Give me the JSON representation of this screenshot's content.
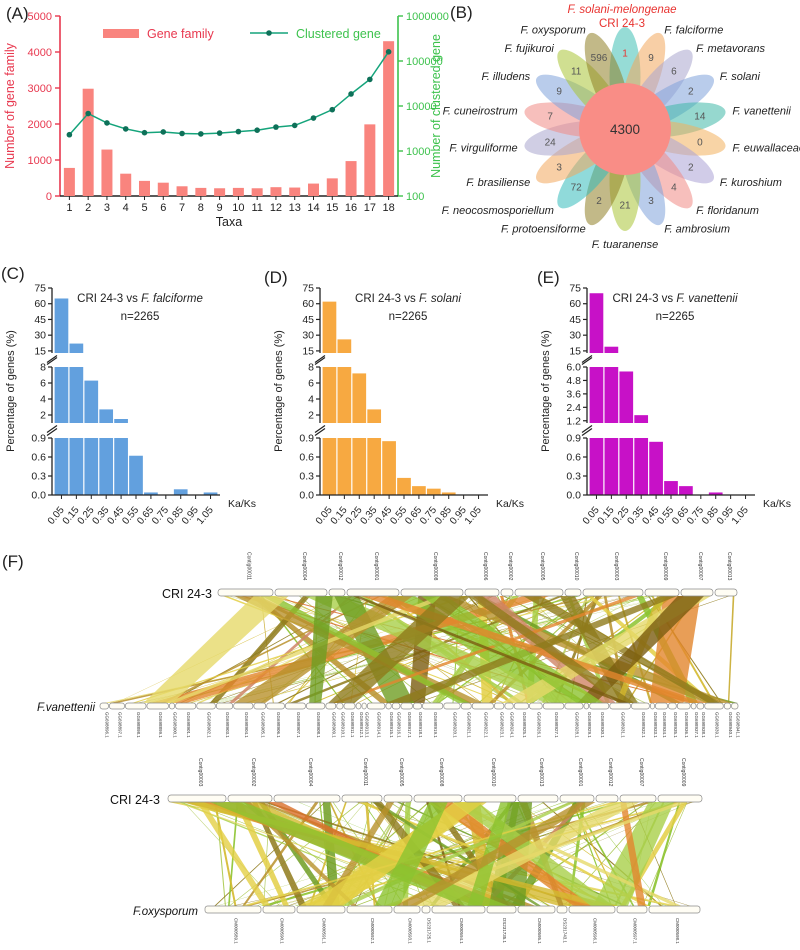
{
  "panel_letters": {
    "A": "(A)",
    "B": "(B)",
    "C": "(C)",
    "D": "(D)",
    "E": "(E)",
    "F": "(F)"
  },
  "chart_data": [
    {
      "id": "A",
      "type": "bar+line",
      "xlabel": "Taxa",
      "categories": [
        "1",
        "2",
        "3",
        "4",
        "5",
        "6",
        "7",
        "8",
        "9",
        "10",
        "11",
        "12",
        "13",
        "14",
        "15",
        "16",
        "17",
        "18"
      ],
      "series": [
        {
          "name": "Gene family",
          "type": "bar",
          "axis": "left",
          "color": "#F9847E",
          "values": [
            780,
            2980,
            1290,
            620,
            420,
            370,
            270,
            225,
            215,
            225,
            215,
            245,
            235,
            345,
            490,
            970,
            1990,
            4300
          ]
        },
        {
          "name": "Clustered gene",
          "type": "line",
          "axis": "right",
          "color": "#15A47B",
          "marker_color": "#0E7159",
          "values": [
            2300,
            6800,
            4200,
            3100,
            2550,
            2650,
            2450,
            2400,
            2500,
            2700,
            2900,
            3400,
            3700,
            5400,
            8300,
            18500,
            39000,
            160000
          ]
        }
      ],
      "left_axis": {
        "label": "Number of gene family",
        "color": "#E8384F",
        "min": 0,
        "max": 5000,
        "ticks": [
          0,
          1000,
          2000,
          3000,
          4000,
          5000
        ]
      },
      "right_axis": {
        "label": "Number of clustered gene",
        "color": "#3DC24D",
        "log": true,
        "ticks": [
          100,
          1000,
          10000,
          100000,
          1000000
        ]
      },
      "legend": [
        "Gene family",
        "Clustered gene"
      ]
    },
    {
      "id": "C",
      "type": "bar",
      "title_prefix": "CRI 24-3 vs ",
      "species": "F. falciforme",
      "subtitle": "n=2265",
      "color": "#62A0DE",
      "ylabel": "Percentage of genes (%)",
      "xlabel": "Ka/Ks",
      "categories": [
        "0.05",
        "0.15",
        "0.25",
        "0.35",
        "0.45",
        "0.55",
        "0.65",
        "0.75",
        "0.85",
        "0.95",
        "1.05"
      ],
      "values": [
        65,
        22,
        6.3,
        2.7,
        1.5,
        0.62,
        0.04,
        0,
        0.09,
        0,
        0.04
      ],
      "segments": [
        {
          "min": 0,
          "max": 0.9,
          "ticks": [
            [
              "0.0",
              0
            ],
            [
              "0.3",
              0.3
            ],
            [
              "0.6",
              0.6
            ],
            [
              "0.9",
              0.9
            ]
          ]
        },
        {
          "min": 1,
          "max": 8,
          "ticks": [
            [
              "2",
              2
            ],
            [
              "4",
              4
            ],
            [
              "6",
              6
            ],
            [
              "8",
              8
            ]
          ]
        },
        {
          "min": 13,
          "max": 75,
          "ticks": [
            [
              "15",
              15
            ],
            [
              "30",
              30
            ],
            [
              "45",
              45
            ],
            [
              "60",
              60
            ],
            [
              "75",
              75
            ]
          ]
        }
      ]
    },
    {
      "id": "D",
      "type": "bar",
      "title_prefix": "CRI 24-3 vs ",
      "species": "F. solani",
      "subtitle": "n=2265",
      "color": "#F7A941",
      "ylabel": "Percentage of genes (%)",
      "xlabel": "Ka/Ks",
      "categories": [
        "0.05",
        "0.15",
        "0.25",
        "0.35",
        "0.45",
        "0.55",
        "0.65",
        "0.75",
        "0.85",
        "0.95",
        "1.05"
      ],
      "values": [
        62,
        26,
        7.2,
        2.7,
        0.85,
        0.27,
        0.14,
        0.1,
        0.04,
        0,
        0
      ],
      "segments": [
        {
          "min": 0,
          "max": 0.9,
          "ticks": [
            [
              "0.0",
              0
            ],
            [
              "0.3",
              0.3
            ],
            [
              "0.6",
              0.6
            ],
            [
              "0.9",
              0.9
            ]
          ]
        },
        {
          "min": 1,
          "max": 8,
          "ticks": [
            [
              "2",
              2
            ],
            [
              "4",
              4
            ],
            [
              "6",
              6
            ],
            [
              "8",
              8
            ]
          ]
        },
        {
          "min": 13,
          "max": 75,
          "ticks": [
            [
              "15",
              15
            ],
            [
              "30",
              30
            ],
            [
              "45",
              45
            ],
            [
              "60",
              60
            ],
            [
              "75",
              75
            ]
          ]
        }
      ]
    },
    {
      "id": "E",
      "type": "bar",
      "title_prefix": "CRI 24-3 vs ",
      "species": "F. vanettenii",
      "subtitle": "n=2265",
      "color": "#C711C7",
      "ylabel": "Percentage of genes (%)",
      "xlabel": "Ka/Ks",
      "categories": [
        "0.05",
        "0.15",
        "0.25",
        "0.35",
        "0.45",
        "0.55",
        "0.65",
        "0.75",
        "0.85",
        "0.95",
        "1.05"
      ],
      "values": [
        70,
        19,
        5.6,
        1.7,
        0.84,
        0.22,
        0.14,
        0,
        0.04,
        0,
        0
      ],
      "segments": [
        {
          "min": 0,
          "max": 0.9,
          "ticks": [
            [
              "0.0",
              0
            ],
            [
              "0.3",
              0.3
            ],
            [
              "0.6",
              0.6
            ],
            [
              "0.9",
              0.9
            ]
          ]
        },
        {
          "min": 1,
          "max": 6,
          "ticks": [
            [
              "1.2",
              1.2
            ],
            [
              "2.4",
              2.4
            ],
            [
              "3.6",
              3.6
            ],
            [
              "4.8",
              4.8
            ],
            [
              "6.0",
              6
            ]
          ]
        },
        {
          "min": 13,
          "max": 75,
          "ticks": [
            [
              "15",
              15
            ],
            [
              "30",
              30
            ],
            [
              "45",
              45
            ],
            [
              "60",
              60
            ],
            [
              "75",
              75
            ]
          ]
        }
      ]
    }
  ],
  "flower": {
    "header_line1": "F. solani-melongenae",
    "header_line2": "CRI 24-3",
    "header_color": "#E8322F",
    "center_value": "4300",
    "center_color": "#F98D86",
    "items": [
      {
        "name": "CRI 24-3",
        "value": "1",
        "color": "#3FBFB4",
        "value_color": "#E8322F",
        "is_header": true
      },
      {
        "name": "F. falciforme",
        "value": "9",
        "color": "#F2A85C"
      },
      {
        "name": "F. metavorans",
        "value": "6",
        "color": "#A9A5CE"
      },
      {
        "name": "F. solani",
        "value": "2",
        "color": "#7FA3DB"
      },
      {
        "name": "F. vanettenii",
        "value": "14",
        "color": "#3FB8A8"
      },
      {
        "name": "F. euwallaceae",
        "value": "0",
        "color": "#F2B05C"
      },
      {
        "name": "F. kuroshium",
        "value": "2",
        "color": "#ABA3D6"
      },
      {
        "name": "F. floridanum",
        "value": "4",
        "color": "#F08B85"
      },
      {
        "name": "F. ambrosium",
        "value": "3",
        "color": "#7FA3DB"
      },
      {
        "name": "F. tuaranense",
        "value": "21",
        "color": "#A9C436"
      },
      {
        "name": "F. protoensiforme",
        "value": "2",
        "color": "#8F7F26"
      },
      {
        "name": "F. neocosmosporiellum",
        "value": "72",
        "color": "#35BCBC"
      },
      {
        "name": "F. brasiliense",
        "value": "3",
        "color": "#F2A85C"
      },
      {
        "name": "F. virguliforme",
        "value": "24",
        "color": "#A9A5CE"
      },
      {
        "name": "F. cuneirostrum",
        "value": "7",
        "color": "#F08B85"
      },
      {
        "name": "F. illudens",
        "value": "9",
        "color": "#7FA3DB"
      },
      {
        "name": "F. fujikuroi",
        "value": "11",
        "color": "#A9C436"
      },
      {
        "name": "F. oxysporum",
        "value": "596",
        "color": "#8F7F26"
      }
    ]
  },
  "synteny": {
    "ribbon_palette": [
      "#8f7a1b",
      "#8f7a1b",
      "#b8912c",
      "#b8912c",
      "#b8912c",
      "#d4b92e",
      "#e3cf45",
      "#e3cf45",
      "#e6d96a",
      "#6f9e23",
      "#6f9e23",
      "#8cc32f",
      "#8cc32f",
      "#a9d04a",
      "#e2862d",
      "#d96f2b",
      "#cf8566",
      "#7a5c10"
    ],
    "thin_palette": [
      "#a9c84a",
      "#9ebf3b",
      "#b9cf6a",
      "#8f7a1b",
      "#c8ab2f",
      "#8cc32f",
      "#d4b92e"
    ],
    "plots": [
      {
        "query": "CRI 24-3",
        "subject": "F.vanettenii",
        "seed": 7,
        "top_span": [
          218,
          737
        ],
        "bottom_span": [
          100,
          738
        ],
        "top_labels": [
          "Contig00011",
          "Contig00004",
          "Contig00012",
          "Contig00001",
          "Contig00008",
          "Contig00006",
          "Contig00002",
          "Contig00005",
          "Contig00010",
          "Contig00003",
          "Contig00009",
          "Contig00007",
          "Contig00013"
        ],
        "top_widths": [
          55,
          52,
          16,
          52,
          62,
          34,
          12,
          48,
          16,
          60,
          34,
          32,
          22
        ],
        "bottom_labels": [
          "GG698896.1",
          "GG698897.1",
          "GG698898.1",
          "GG698899.1",
          "GG698900.1",
          "GG698901.1",
          "GG698902.1",
          "GG698903.1",
          "GG698904.1",
          "GG698905.1",
          "GG698906.1",
          "GG698907.1",
          "GG698908.1",
          "GG698909.1",
          "GG698910.1",
          "GG698911.1",
          "GG698912.1",
          "GG698913.1",
          "GG698914.1",
          "GG698915.1",
          "GG698916.1",
          "GG698917.1",
          "GG698918.1",
          "GG698919.1",
          "GG698920.1",
          "GG698921.1",
          "GG698922.1",
          "GG698923.1",
          "GG698924.1",
          "GG698925.1",
          "GG698926.1",
          "GG698927.1",
          "GG698928.1",
          "GG698929.1",
          "GG698930.1",
          "GG698931.1",
          "GG698932.1",
          "GG698933.1",
          "GG698934.1",
          "GG698935.1",
          "GG698936.1",
          "GG698937.1",
          "GG698938.1",
          "GG698939.1",
          "GG698940.1",
          "GG698941.1"
        ],
        "ribbons": {
          "thick": 26,
          "medium": 32,
          "thin": 72
        }
      },
      {
        "query": "CRI 24-3",
        "subject": "F.oxysporum",
        "seed": 13,
        "top_span": [
          168,
          702
        ],
        "bottom_span": [
          205,
          700
        ],
        "top_labels": [
          "Contig00003",
          "Contig00002",
          "Contig00004",
          "Contig00011",
          "Contig00005",
          "Contig00008",
          "Contig00010",
          "Contig00013",
          "Contig00001",
          "Contig00012",
          "Contig00007",
          "Contig00009"
        ],
        "top_widths": [
          58,
          44,
          66,
          40,
          28,
          48,
          52,
          40,
          34,
          22,
          36,
          44
        ],
        "bottom_labels": [
          "CM000589.1",
          "CM000590.1",
          "CM000591.1",
          "CM000592.1",
          "CM000593.1",
          "DS231725.1",
          "CM000594.1",
          "DS231735.1",
          "CM000595.1",
          "DS231743.1",
          "CM000596.1",
          "CM000597.1",
          "CM000598.1"
        ],
        "bottom_widths": [
          56,
          32,
          48,
          45,
          26,
          8,
          53,
          29,
          37,
          10,
          46,
          30,
          51
        ],
        "ribbons": {
          "thick": 28,
          "medium": 30,
          "thin": 70
        }
      }
    ]
  }
}
